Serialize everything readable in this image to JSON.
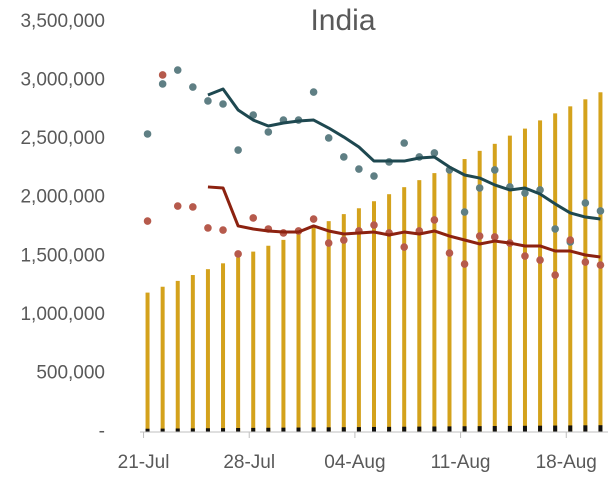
{
  "chart_data": {
    "type": "combo",
    "title": "India",
    "categories": [
      "21-Jul",
      null,
      null,
      null,
      null,
      null,
      null,
      "28-Jul",
      null,
      null,
      null,
      null,
      null,
      null,
      "04-Aug",
      null,
      null,
      null,
      null,
      null,
      null,
      "11-Aug",
      null,
      null,
      null,
      null,
      null,
      null,
      "18-Aug",
      null,
      null
    ],
    "series": [
      {
        "kind": "bar",
        "color": "#d4a21c",
        "values": [
          1190000,
          1240000,
          1290000,
          1340000,
          1390000,
          1440000,
          1490000,
          1540000,
          1590000,
          1640000,
          1700000,
          1750000,
          1800000,
          1860000,
          1910000,
          1970000,
          2030000,
          2090000,
          2150000,
          2210000,
          2270000,
          2330000,
          2400000,
          2460000,
          2530000,
          2590000,
          2660000,
          2720000,
          2780000,
          2840000,
          2900000
        ]
      },
      {
        "kind": "bar",
        "color": "#111111",
        "values": [
          28000,
          29000,
          30000,
          31000,
          32000,
          33000,
          34000,
          35000,
          36000,
          37000,
          38000,
          39000,
          40000,
          41000,
          42000,
          43000,
          44000,
          45000,
          46000,
          47000,
          48000,
          49000,
          50000,
          51000,
          52000,
          53000,
          54000,
          55000,
          56000,
          57000,
          58000
        ]
      },
      {
        "kind": "scatter",
        "color": "#5f7f84",
        "values": [
          2544000,
          2971000,
          3090000,
          2945000,
          2826000,
          2800000,
          2407000,
          2706000,
          2561000,
          2663000,
          2663000,
          2902000,
          2510000,
          2348000,
          2245000,
          2185000,
          2305000,
          2467000,
          2348000,
          2382000,
          2237000,
          1878000,
          2083000,
          2237000,
          2092000,
          2040000,
          2066000,
          1733000,
          1622000,
          1955000,
          1887000
        ]
      },
      {
        "kind": "scatter",
        "color": "#b65a4c",
        "values": [
          1801000,
          3048000,
          1929000,
          1921000,
          1742000,
          1724000,
          1520000,
          1827000,
          1733000,
          1699000,
          1716000,
          1818000,
          1613000,
          1639000,
          1716000,
          1767000,
          1699000,
          1579000,
          1716000,
          1810000,
          1528000,
          1434000,
          1673000,
          1665000,
          1613000,
          1502000,
          1468000,
          1340000,
          1639000,
          1451000,
          1425000
        ]
      },
      {
        "kind": "line",
        "color": "#1e4850",
        "values": [
          null,
          null,
          null,
          null,
          2877000,
          2928000,
          2749000,
          2663000,
          2612000,
          2638000,
          2655000,
          2663000,
          2595000,
          2518000,
          2433000,
          2313000,
          2313000,
          2313000,
          2339000,
          2348000,
          2262000,
          2194000,
          2168000,
          2109000,
          2066000,
          2083000,
          2032000,
          1947000,
          1870000,
          1835000,
          1818000
        ]
      },
      {
        "kind": "line",
        "color": "#8c2210",
        "values": [
          null,
          null,
          null,
          null,
          2092000,
          2083000,
          1759000,
          1733000,
          1716000,
          1707000,
          1707000,
          1759000,
          1716000,
          1690000,
          1699000,
          1707000,
          1682000,
          1707000,
          1690000,
          1716000,
          1673000,
          1639000,
          1605000,
          1630000,
          1613000,
          1588000,
          1588000,
          1545000,
          1545000,
          1511000,
          1494000
        ]
      }
    ],
    "ylim": [
      0,
      3500000
    ],
    "yticks": [
      {
        "value": 0,
        "label": "-"
      },
      {
        "value": 500000,
        "label": "500,000"
      },
      {
        "value": 1000000,
        "label": "1,000,000"
      },
      {
        "value": 1500000,
        "label": "1,500,000"
      },
      {
        "value": 2000000,
        "label": "2,000,000"
      },
      {
        "value": 2500000,
        "label": "2,500,000"
      },
      {
        "value": 3000000,
        "label": "3,000,000"
      },
      {
        "value": 3500000,
        "label": "3,500,000"
      }
    ]
  }
}
